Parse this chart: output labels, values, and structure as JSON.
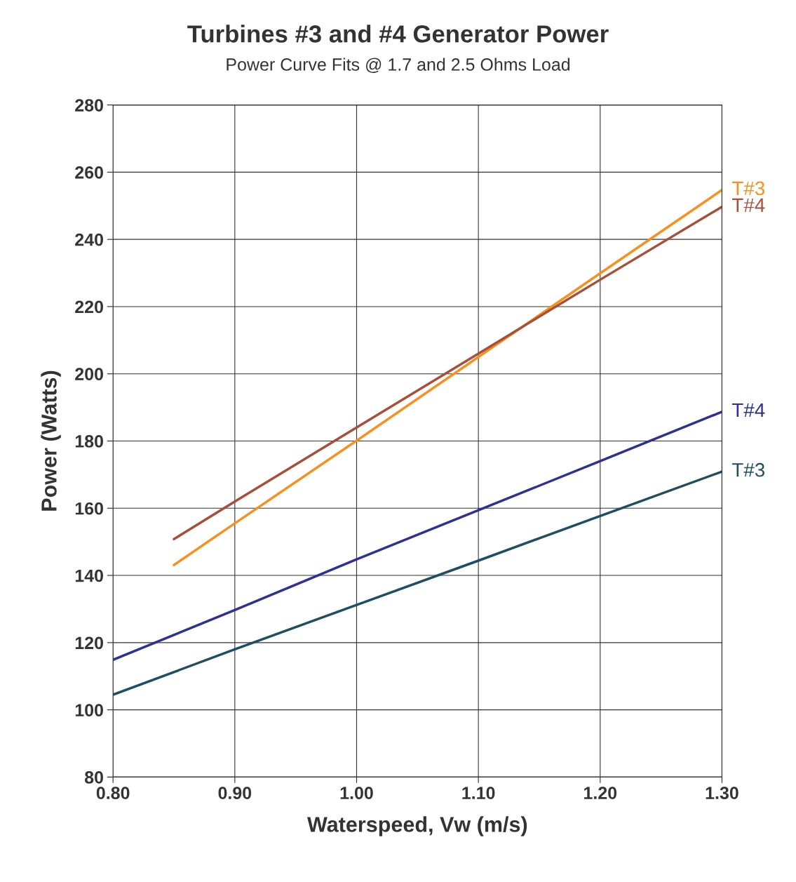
{
  "chart_data": {
    "type": "line",
    "title": "Turbines #3 and #4 Generator Power",
    "subtitle": "Power Curve Fits @ 1.7 and 2.5 Ohms Load",
    "xlabel": "Waterspeed, Vw (m/s)",
    "ylabel": "Power (Watts)",
    "xlim": [
      0.8,
      1.3
    ],
    "xticks": [
      {
        "value": 0.8,
        "label": "0.80"
      },
      {
        "value": 0.9,
        "label": "0.90"
      },
      {
        "value": 1.0,
        "label": "1.00"
      },
      {
        "value": 1.1,
        "label": "1.10"
      },
      {
        "value": 1.2,
        "label": "1.20"
      },
      {
        "value": 1.3,
        "label": "1.30"
      }
    ],
    "ylim": [
      80,
      280
    ],
    "yticks": [
      80,
      100,
      120,
      140,
      160,
      180,
      200,
      220,
      240,
      260,
      280
    ],
    "grid": true,
    "legend": false,
    "marker": "none",
    "line_style": "solid",
    "series": [
      {
        "name": "T#3",
        "color": "#f7901e",
        "x": [
          0.85,
          0.9,
          1.0,
          1.1,
          1.2,
          1.3
        ],
        "values": [
          143.1,
          155.5,
          180.1,
          205,
          229.9,
          254.7
        ]
      },
      {
        "name": "T#4",
        "color": "#a5503a",
        "x": [
          0.85,
          0.9,
          1.0,
          1.1,
          1.2,
          1.3
        ],
        "values": [
          150.8,
          162,
          184,
          206,
          228,
          249.7
        ]
      },
      {
        "name": "T#4",
        "color": "#2e3192",
        "x": [
          0.8,
          0.9,
          1.0,
          1.1,
          1.2,
          1.3
        ],
        "values": [
          114.9,
          129.7,
          144.8,
          159.4,
          174,
          188.7
        ]
      },
      {
        "name": "T#3",
        "color": "#1f4e63",
        "x": [
          0.8,
          0.9,
          1.0,
          1.1,
          1.2,
          1.3
        ],
        "values": [
          104.5,
          118,
          131.2,
          144.4,
          157.7,
          170.9
        ]
      }
    ]
  }
}
